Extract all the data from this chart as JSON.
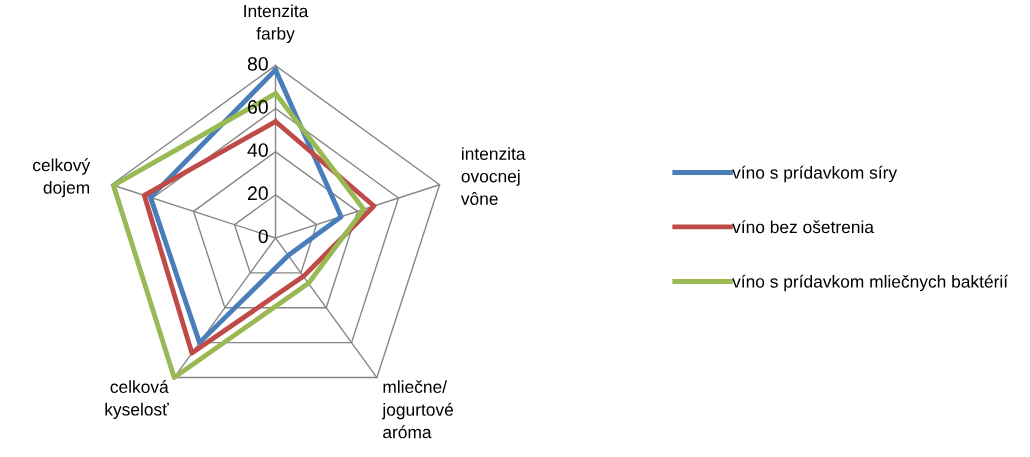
{
  "chart_data": {
    "type": "radar",
    "categories": [
      "Intenzita\nfarby",
      "intenzita\novocnej\nvône",
      "mliečne/\njogurtové\naróma",
      "celková\nkyselosť",
      "celkový\ndojem"
    ],
    "series": [
      {
        "name": "víno s prídavkom síry",
        "color": "#4a7ebb",
        "values": [
          78,
          32,
          10,
          60,
          61
        ]
      },
      {
        "name": "víno bez ošetrenia",
        "color": "#be4b48",
        "values": [
          54,
          48,
          22,
          66,
          64
        ]
      },
      {
        "name": "víno s prídavkom mliečnych baktérií",
        "color": "#98b954",
        "values": [
          67,
          43,
          26,
          80,
          79
        ]
      }
    ],
    "ylim": [
      0,
      80
    ],
    "yticks": [
      0,
      20,
      40,
      60,
      80
    ],
    "grid": true,
    "legend": "right",
    "marker": "none"
  }
}
